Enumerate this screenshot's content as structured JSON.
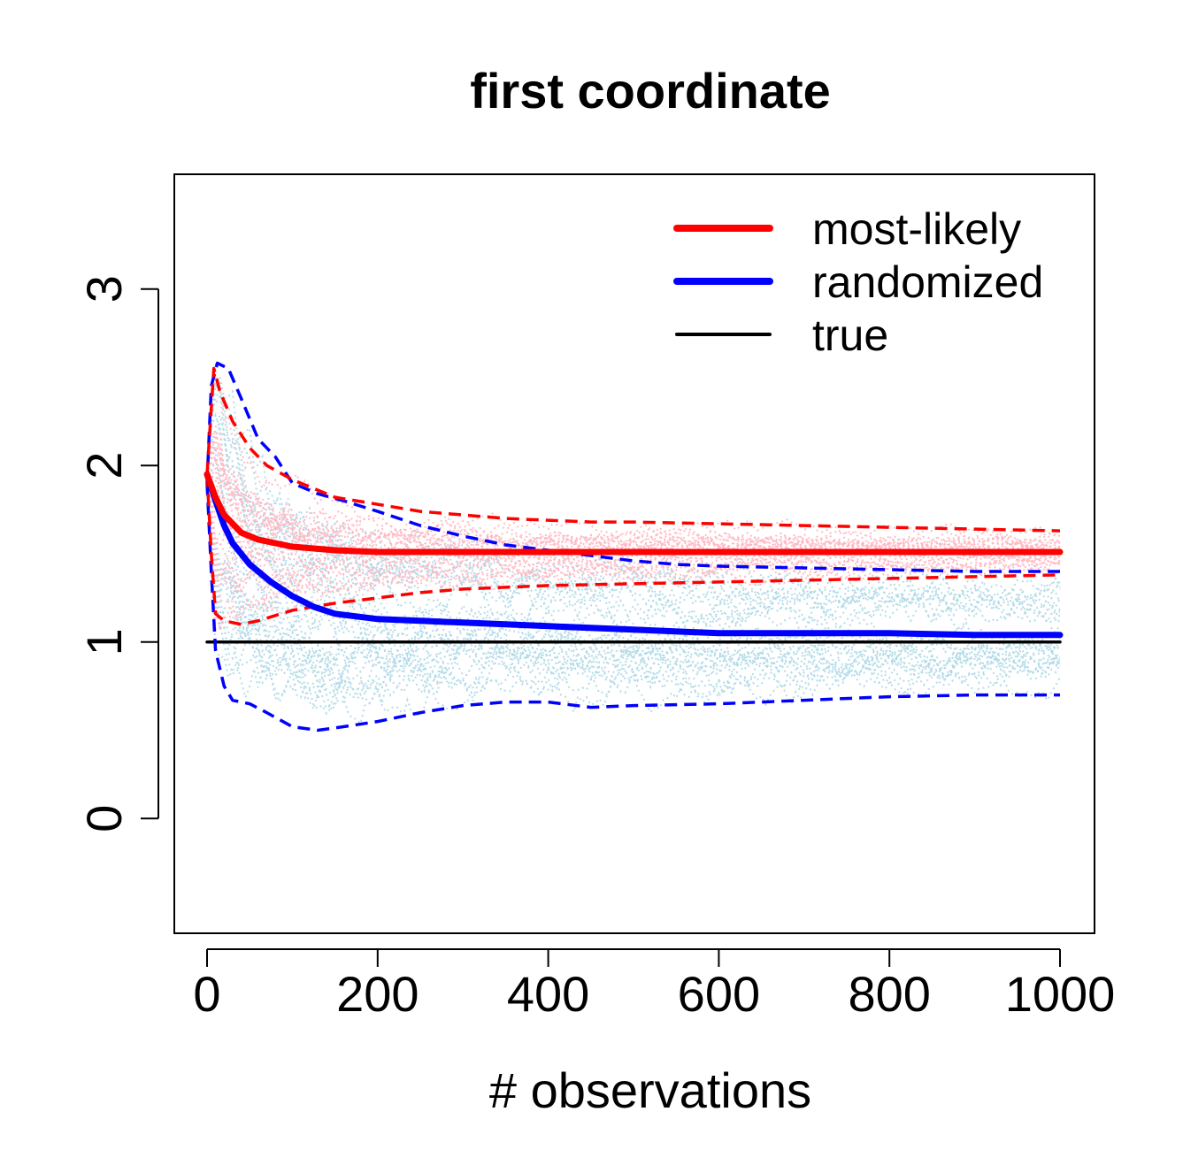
{
  "chart_data": {
    "type": "line",
    "title": "first coordinate",
    "xlabel": "# observations",
    "ylabel": "",
    "xlim": [
      0,
      1000
    ],
    "ylim": [
      -0.65,
      3.65
    ],
    "x_ticks": [
      0,
      200,
      400,
      600,
      800,
      1000
    ],
    "x_tick_labels": [
      "0",
      "200",
      "400",
      "600",
      "800",
      "1000"
    ],
    "y_ticks": [
      0,
      1,
      2,
      3
    ],
    "y_tick_labels": [
      "0",
      "1",
      "2",
      "3"
    ],
    "legend": {
      "position": "top-right",
      "entries": [
        {
          "label": "most-likely",
          "color": "#ff0000"
        },
        {
          "label": "randomized",
          "color": "#0000ff"
        },
        {
          "label": "true",
          "color": "#000000"
        }
      ]
    },
    "colors": {
      "most_likely": "#ff0000",
      "randomized": "#0000ff",
      "true": "#000000",
      "most_likely_runs": "#ffb6c1",
      "randomized_runs": "#add8e6"
    },
    "series": [
      {
        "name": "most-likely mean",
        "style": "solid-thick",
        "color": "#ff0000",
        "x": [
          0,
          10,
          20,
          40,
          60,
          80,
          100,
          150,
          200,
          300,
          400,
          500,
          600,
          700,
          800,
          900,
          1000
        ],
        "y": [
          1.95,
          1.82,
          1.72,
          1.62,
          1.58,
          1.56,
          1.54,
          1.52,
          1.51,
          1.51,
          1.51,
          1.51,
          1.51,
          1.51,
          1.51,
          1.51,
          1.51
        ]
      },
      {
        "name": "most-likely upper band",
        "style": "dashed",
        "color": "#ff0000",
        "x": [
          0,
          8,
          15,
          30,
          50,
          70,
          100,
          150,
          200,
          250,
          300,
          350,
          400,
          450,
          500,
          600,
          700,
          800,
          900,
          1000
        ],
        "y": [
          1.95,
          2.55,
          2.42,
          2.25,
          2.1,
          2.0,
          1.92,
          1.82,
          1.78,
          1.74,
          1.72,
          1.7,
          1.69,
          1.68,
          1.68,
          1.67,
          1.66,
          1.65,
          1.64,
          1.63
        ]
      },
      {
        "name": "most-likely lower band",
        "style": "dashed",
        "color": "#ff0000",
        "x": [
          0,
          5,
          10,
          20,
          40,
          60,
          80,
          100,
          150,
          200,
          250,
          300,
          350,
          400,
          500,
          600,
          700,
          800,
          900,
          1000
        ],
        "y": [
          1.95,
          1.5,
          1.16,
          1.12,
          1.1,
          1.12,
          1.15,
          1.18,
          1.22,
          1.25,
          1.28,
          1.3,
          1.31,
          1.32,
          1.33,
          1.34,
          1.35,
          1.36,
          1.37,
          1.38
        ]
      },
      {
        "name": "randomized mean",
        "style": "solid-thick",
        "color": "#0000ff",
        "x": [
          0,
          10,
          20,
          30,
          50,
          75,
          100,
          125,
          150,
          200,
          250,
          300,
          400,
          500,
          600,
          700,
          800,
          900,
          1000
        ],
        "y": [
          1.95,
          1.8,
          1.66,
          1.56,
          1.44,
          1.34,
          1.26,
          1.2,
          1.16,
          1.13,
          1.12,
          1.11,
          1.09,
          1.07,
          1.05,
          1.05,
          1.05,
          1.04,
          1.04
        ]
      },
      {
        "name": "randomized upper band",
        "style": "dashed",
        "color": "#0000ff",
        "x": [
          0,
          5,
          12,
          25,
          40,
          60,
          80,
          100,
          130,
          160,
          200,
          250,
          300,
          350,
          400,
          450,
          500,
          550,
          600,
          700,
          800,
          900,
          1000
        ],
        "y": [
          1.9,
          2.45,
          2.58,
          2.55,
          2.38,
          2.15,
          2.05,
          1.9,
          1.84,
          1.8,
          1.74,
          1.66,
          1.6,
          1.55,
          1.52,
          1.49,
          1.46,
          1.44,
          1.43,
          1.42,
          1.41,
          1.4,
          1.4
        ]
      },
      {
        "name": "randomized lower band",
        "style": "dashed",
        "color": "#0000ff",
        "x": [
          0,
          5,
          10,
          20,
          30,
          50,
          70,
          100,
          130,
          160,
          200,
          250,
          300,
          350,
          400,
          450,
          500,
          600,
          700,
          800,
          900,
          1000
        ],
        "y": [
          1.9,
          1.4,
          0.95,
          0.75,
          0.67,
          0.65,
          0.6,
          0.52,
          0.5,
          0.52,
          0.55,
          0.6,
          0.64,
          0.66,
          0.66,
          0.63,
          0.64,
          0.65,
          0.67,
          0.69,
          0.7,
          0.7
        ]
      },
      {
        "name": "true",
        "style": "solid",
        "color": "#000000",
        "x": [
          0,
          1000
        ],
        "y": [
          1,
          1
        ]
      }
    ],
    "runs_note_count": 24
  }
}
